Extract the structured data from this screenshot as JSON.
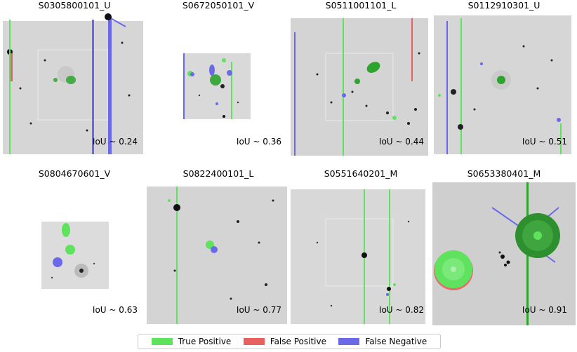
{
  "panels": [
    {
      "title": "S0305800101_U",
      "iou": "IoU ~ 0.24"
    },
    {
      "title": "S0672050101_V",
      "iou": "IoU ~ 0.36"
    },
    {
      "title": "S0511001101_L",
      "iou": "IoU ~ 0.44"
    },
    {
      "title": "S0112910301_U",
      "iou": "IoU ~ 0.51"
    },
    {
      "title": "S0804670601_V",
      "iou": "IoU ~ 0.63"
    },
    {
      "title": "S0822400101_L",
      "iou": "IoU ~ 0.77"
    },
    {
      "title": "S0551640201_M",
      "iou": "IoU ~ 0.82"
    },
    {
      "title": "S0653380401_M",
      "iou": "IoU ~ 0.91"
    }
  ],
  "legend": {
    "true_positive": "True Positive",
    "false_positive": "False Positive",
    "false_negative": "False Negative"
  },
  "colors": {
    "true_positive": "#5fe35f",
    "false_positive": "#e86060",
    "false_negative": "#6a6ae8",
    "sky": "#d9d9d9"
  }
}
